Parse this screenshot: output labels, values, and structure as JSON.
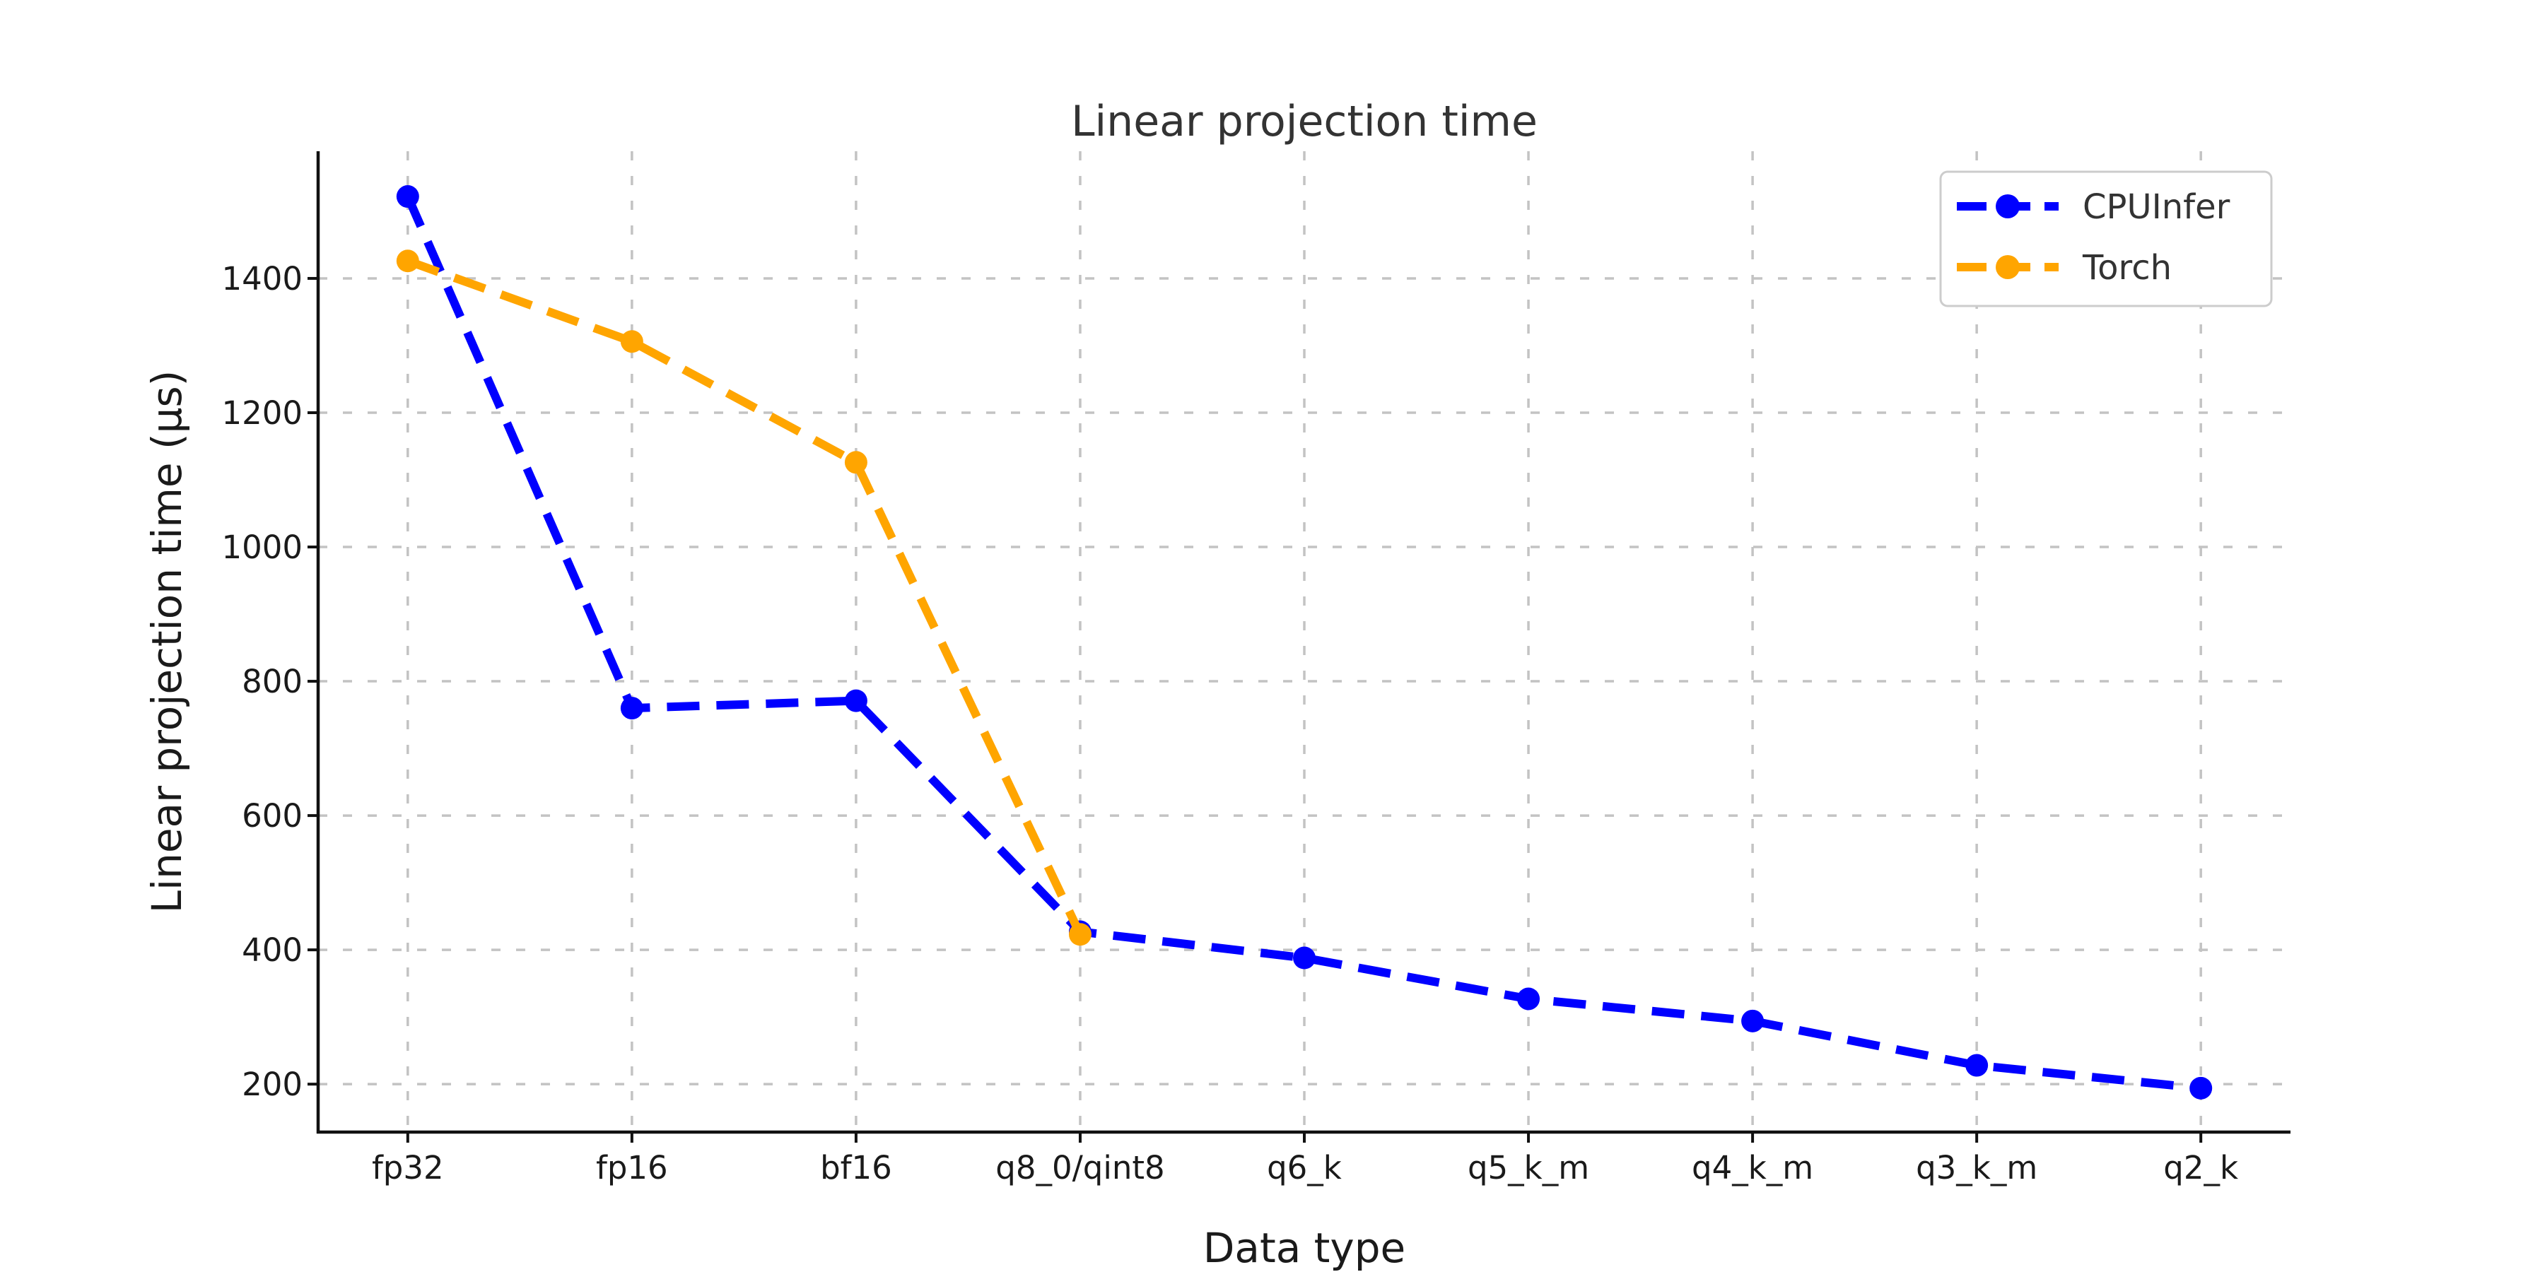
{
  "title": "Linear projection time",
  "chart_data": {
    "type": "line",
    "title": "Linear projection time",
    "xlabel": "Data type",
    "ylabel": "Linear projection time (μs)",
    "categories": [
      "fp32",
      "fp16",
      "bf16",
      "q8_0/qint8",
      "q6_k",
      "q5_k_m",
      "q4_k_m",
      "q3_k_m",
      "q2_k"
    ],
    "series": [
      {
        "name": "CPUInfer",
        "color": "#0000ff",
        "linestyle": "dashed",
        "marker": "circle",
        "values": [
          1522,
          760,
          771,
          427,
          388,
          327,
          294,
          228,
          194
        ]
      },
      {
        "name": "Torch",
        "color": "#ffa500",
        "linestyle": "dashed",
        "marker": "circle",
        "values": [
          1426,
          1306,
          1126,
          423
        ]
      }
    ],
    "yticks": [
      200,
      400,
      600,
      800,
      1000,
      1200,
      1400
    ],
    "ylim": [
      128.6,
      1589.4
    ],
    "grid": true,
    "grid_style": "dashed",
    "grid_color": "#c3c3c3",
    "legend_position": "upper right",
    "background": "#ffffff",
    "spine_color": "#111111",
    "text_color": "#1a1a1a"
  }
}
